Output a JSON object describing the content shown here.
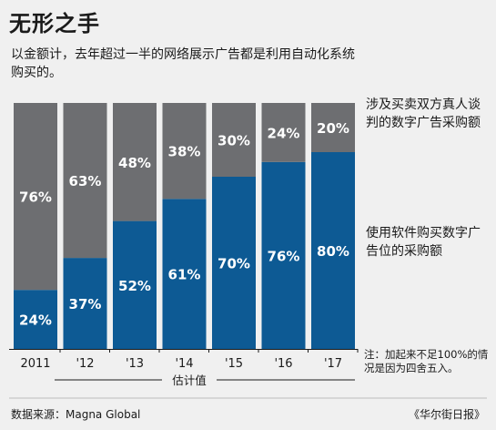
{
  "title": "无形之手",
  "subtitle": "以金额计，去年超过一半的网络展示广告都是利用自动化系统购买的。",
  "legend": {
    "human": "涉及买卖双方真人谈判的数字广告采购额",
    "programmatic": "使用软件购买数字广告位的采购额"
  },
  "estimate_label": "估计值",
  "footnote": "注：加起来不足100%的情况是因为四舍五入。",
  "source": "数据来源：Magna Global",
  "credit": "《华尔街日报》",
  "colors": {
    "human": "#6d6e71",
    "programmatic": "#0d5a94",
    "background": "#f0f0f0"
  },
  "chart_data": {
    "type": "bar",
    "stacked": true,
    "categories": [
      "2011",
      "'12",
      "'13",
      "'14",
      "'15",
      "'16",
      "'17"
    ],
    "series": [
      {
        "key": "programmatic",
        "values": [
          24,
          37,
          52,
          61,
          70,
          76,
          80
        ],
        "labels": [
          "24%",
          "37%",
          "52%",
          "61%",
          "70%",
          "76%",
          "80%"
        ]
      },
      {
        "key": "human",
        "values": [
          76,
          63,
          48,
          38,
          30,
          24,
          20
        ],
        "labels": [
          "76%",
          "63%",
          "48%",
          "38%",
          "30%",
          "24%",
          "20%"
        ]
      }
    ],
    "estimated_categories": [
      "'14",
      "'15",
      "'16",
      "'17"
    ],
    "ylim": [
      0,
      100
    ]
  }
}
